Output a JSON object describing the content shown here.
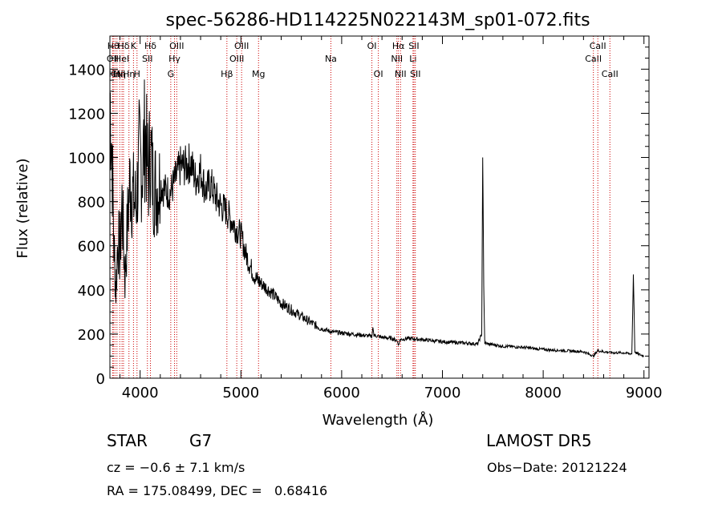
{
  "chart_data": {
    "type": "line",
    "title": "spec-56286-HD114225N022143M_sp01-072.fits",
    "xlabel": "Wavelength (Å)",
    "ylabel": "Flux (relative)",
    "xlim": [
      3700,
      9050
    ],
    "ylim": [
      0,
      1550
    ],
    "x_ticks": [
      4000,
      5000,
      6000,
      7000,
      8000,
      9000
    ],
    "y_ticks": [
      0,
      200,
      400,
      600,
      800,
      1000,
      1200,
      1400
    ],
    "grid": false,
    "line_color": "#000000",
    "marker_color": "#cc0000",
    "series": [
      {
        "x": [
          3700,
          3720,
          3740,
          3760,
          3780,
          3800,
          3820,
          3850,
          3880,
          3900,
          3930,
          3960,
          3990,
          4020,
          4050,
          4080,
          4100,
          4130,
          4160,
          4200,
          4250,
          4300,
          4350,
          4400,
          4450,
          4500,
          4550,
          4600,
          4650,
          4700,
          4750,
          4800,
          4850,
          4900,
          4950,
          5000,
          5050,
          5100,
          5150,
          5200,
          5300,
          5400,
          5500,
          5600,
          5700,
          5800,
          5900,
          6000,
          6100,
          6200,
          6300,
          6310,
          6320,
          6400,
          6500,
          6550,
          6563,
          6580,
          6650,
          6800,
          7000,
          7200,
          7350,
          7390,
          7400,
          7410,
          7420,
          7450,
          7600,
          7800,
          8000,
          8200,
          8400,
          8500,
          8540,
          8600,
          8700,
          8800,
          8880,
          8895,
          8910,
          8940,
          9000
        ],
        "values": [
          1300,
          1050,
          600,
          400,
          650,
          550,
          800,
          450,
          750,
          900,
          820,
          780,
          1000,
          950,
          1120,
          900,
          1050,
          880,
          860,
          880,
          850,
          840,
          900,
          960,
          960,
          980,
          900,
          940,
          850,
          880,
          820,
          780,
          760,
          720,
          680,
          650,
          560,
          500,
          450,
          430,
          390,
          340,
          310,
          280,
          250,
          225,
          210,
          205,
          200,
          195,
          190,
          230,
          195,
          185,
          180,
          170,
          150,
          175,
          180,
          175,
          165,
          160,
          155,
          200,
          1000,
          420,
          160,
          155,
          145,
          140,
          130,
          125,
          120,
          100,
          125,
          120,
          115,
          115,
          110,
          470,
          120,
          110,
          100
        ]
      }
    ],
    "line_markers": [
      {
        "wavelength": 3734,
        "label": "Hθ",
        "row": 0
      },
      {
        "wavelength": 3750,
        "label": "Hη",
        "row": 2
      },
      {
        "wavelength": 3727,
        "label": "OII",
        "row": 1
      },
      {
        "wavelength": 3770,
        "label": "CN",
        "row": 2
      },
      {
        "wavelength": 3798,
        "label": "Hη",
        "row": 2
      },
      {
        "wavelength": 3820,
        "label": "HeI",
        "row": 1
      },
      {
        "wavelength": 3835,
        "label": "Hδ",
        "row": 0
      },
      {
        "wavelength": 3889,
        "label": "Hη",
        "row": 2
      },
      {
        "wavelength": 3934,
        "label": "K",
        "row": 0
      },
      {
        "wavelength": 3969,
        "label": "H",
        "row": 2
      },
      {
        "wavelength": 4072,
        "label": "SII",
        "row": 1
      },
      {
        "wavelength": 4102,
        "label": "Hδ",
        "row": 0
      },
      {
        "wavelength": 4304,
        "label": "G",
        "row": 2
      },
      {
        "wavelength": 4341,
        "label": "Hγ",
        "row": 1
      },
      {
        "wavelength": 4363,
        "label": "OIII",
        "row": 0
      },
      {
        "wavelength": 4861,
        "label": "Hβ",
        "row": 2
      },
      {
        "wavelength": 4959,
        "label": "OIII",
        "row": 1
      },
      {
        "wavelength": 5007,
        "label": "OIII",
        "row": 0
      },
      {
        "wavelength": 5175,
        "label": "Mg",
        "row": 2
      },
      {
        "wavelength": 5893,
        "label": "Na",
        "row": 1
      },
      {
        "wavelength": 6300,
        "label": "OI",
        "row": 0
      },
      {
        "wavelength": 6364,
        "label": "OI",
        "row": 2
      },
      {
        "wavelength": 6548,
        "label": "NII",
        "row": 1
      },
      {
        "wavelength": 6563,
        "label": "Hα",
        "row": 0
      },
      {
        "wavelength": 6584,
        "label": "NII",
        "row": 2
      },
      {
        "wavelength": 6708,
        "label": "Li",
        "row": 1
      },
      {
        "wavelength": 6717,
        "label": "SII",
        "row": 0
      },
      {
        "wavelength": 6731,
        "label": "SII",
        "row": 2
      },
      {
        "wavelength": 8498,
        "label": "CaII",
        "row": 1
      },
      {
        "wavelength": 8542,
        "label": "CaII",
        "row": 0
      },
      {
        "wavelength": 8662,
        "label": "CaII",
        "row": 2
      }
    ]
  },
  "info": {
    "obj_class": "STAR",
    "obj_subclass": "G7",
    "survey": "LAMOST DR5",
    "cz": "cz = −0.6 ± 7.1 km/s",
    "obs_date": "Obs−Date: 20121224",
    "radec": "RA = 175.08499, DEC =   0.68416"
  }
}
